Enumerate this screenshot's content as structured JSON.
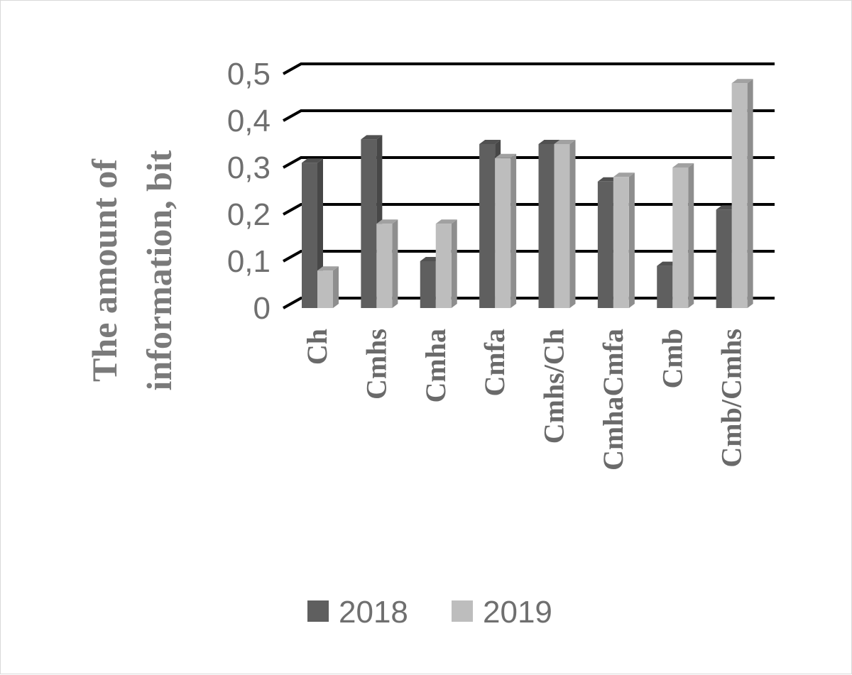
{
  "chart_data": {
    "type": "bar",
    "style": "3d-clustered-column",
    "title": "",
    "ylabel": "The amount of information, bit",
    "xlabel": "",
    "categories": [
      "Ch",
      "Cmhs",
      "Cmha",
      "Cmfa",
      "Cmhs/Ch",
      "CmhaCmfa",
      "Cmb",
      "Cmb/Cmhs"
    ],
    "series": [
      {
        "name": "2018",
        "values": [
          0.31,
          0.36,
          0.1,
          0.35,
          0.35,
          0.27,
          0.09,
          0.21
        ],
        "color": "#5f5f5f"
      },
      {
        "name": "2019",
        "values": [
          0.08,
          0.18,
          0.18,
          0.32,
          0.35,
          0.28,
          0.3,
          0.48
        ],
        "color": "#bdbdbd"
      }
    ],
    "ylim": [
      0,
      0.5
    ],
    "yticks": [
      {
        "value": 0,
        "label": "0"
      },
      {
        "value": 0.1,
        "label": "0,1"
      },
      {
        "value": 0.2,
        "label": "0,2"
      },
      {
        "value": 0.3,
        "label": "0,3"
      },
      {
        "value": 0.4,
        "label": "0,4"
      },
      {
        "value": 0.5,
        "label": "0,5"
      }
    ],
    "grid": true,
    "legend": "bottom"
  }
}
